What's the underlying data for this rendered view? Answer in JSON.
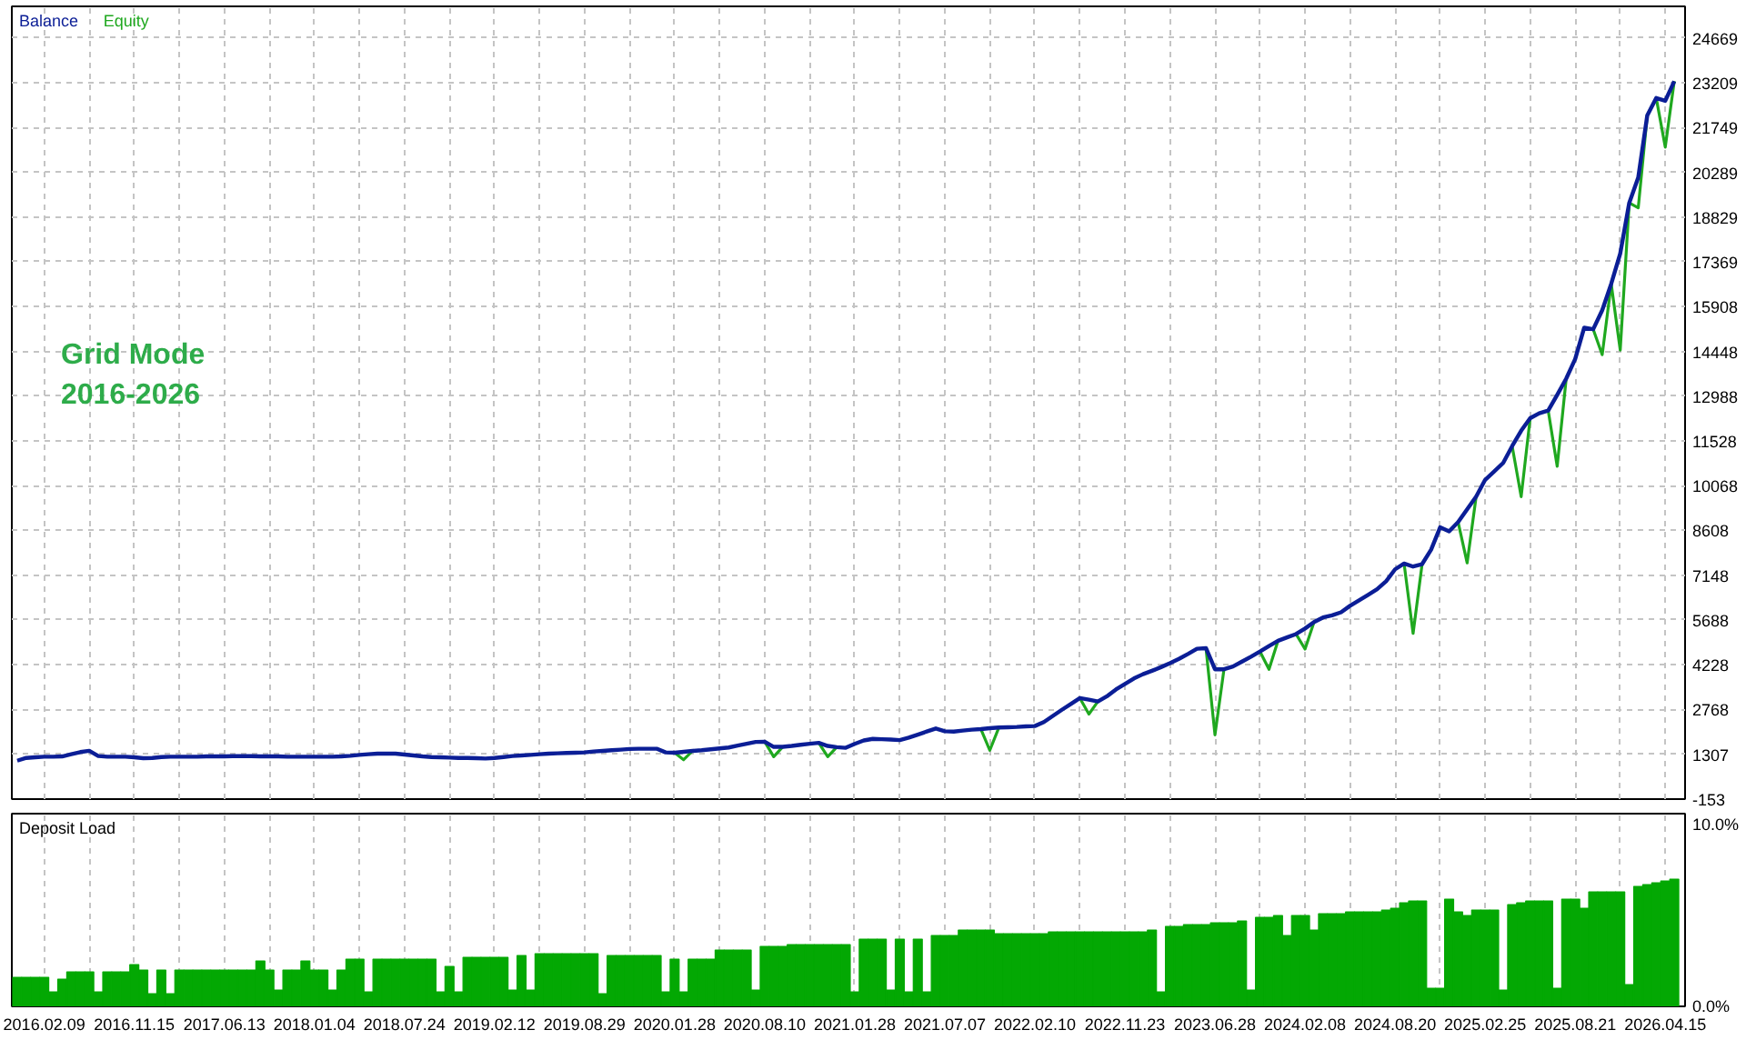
{
  "chart_data": [
    {
      "type": "line",
      "legend": "top left",
      "tick_labels": "y",
      "grid": true,
      "categories": [
        null,
        null,
        null,
        "2016.02.09",
        null,
        null,
        null,
        null,
        null,
        null,
        null,
        null,
        null,
        "2016.11.15",
        null,
        null,
        null,
        null,
        null,
        null,
        null,
        null,
        null,
        "2017.06.13",
        null,
        null,
        null,
        null,
        null,
        null,
        null,
        null,
        null,
        "2018.01.04",
        null,
        null,
        null,
        null,
        null,
        null,
        null,
        null,
        null,
        "2018.07.24",
        null,
        null,
        null,
        null,
        null,
        null,
        null,
        null,
        null,
        "2019.02.12",
        null,
        null,
        null,
        null,
        null,
        null,
        null,
        null,
        null,
        "2019.08.29",
        null,
        null,
        null,
        null,
        null,
        null,
        null,
        null,
        null,
        "2020.01.28",
        null,
        null,
        null,
        null,
        null,
        null,
        null,
        null,
        null,
        "2020.08.10",
        null,
        null,
        null,
        null,
        null,
        null,
        null,
        null,
        null,
        "2021.01.28",
        null,
        null,
        null,
        null,
        null,
        null,
        null,
        null,
        null,
        "2021.07.07",
        null,
        null,
        null,
        null,
        null,
        null,
        null,
        null,
        null,
        "2022.02.10",
        null,
        null,
        null,
        null,
        null,
        null,
        null,
        null,
        null,
        "2022.11.23",
        null,
        null,
        null,
        null,
        null,
        null,
        null,
        null,
        null,
        "2023.06.28",
        null,
        null,
        null,
        null,
        null,
        null,
        null,
        null,
        null,
        "2024.02.08",
        null,
        null,
        null,
        null,
        null,
        null,
        null,
        null,
        null,
        "2024.08.20",
        null,
        null,
        null,
        null,
        null,
        null,
        null,
        null,
        null,
        "2025.02.25",
        null,
        null,
        null,
        null,
        null,
        null,
        null,
        null,
        null,
        "2025.08.21",
        null,
        null,
        null,
        null,
        null,
        null,
        null,
        null,
        null,
        "2026.04.15",
        null
      ],
      "ylim": [
        -153,
        25700
      ],
      "yticks": [
        -153,
        1307,
        2768,
        4228,
        5688,
        7148,
        8608,
        10068,
        11528,
        12988,
        14448,
        15908,
        17369,
        18829,
        20289,
        21749,
        23209,
        24669
      ],
      "annotations": [
        "Grid Mode",
        "2016-2026"
      ],
      "series": [
        {
          "name": "Balance",
          "color": "#0b1e96",
          "values": [
            1100,
            1190,
            1210,
            1230,
            1230,
            1240,
            1310,
            1380,
            1420,
            1250,
            1230,
            1230,
            1230,
            1210,
            1180,
            1190,
            1220,
            1230,
            1230,
            1230,
            1230,
            1240,
            1240,
            1240,
            1250,
            1250,
            1250,
            1240,
            1240,
            1240,
            1230,
            1230,
            1230,
            1230,
            1230,
            1230,
            1240,
            1260,
            1290,
            1310,
            1330,
            1330,
            1330,
            1300,
            1270,
            1240,
            1220,
            1210,
            1200,
            1190,
            1190,
            1180,
            1170,
            1190,
            1220,
            1250,
            1270,
            1290,
            1310,
            1330,
            1340,
            1350,
            1360,
            1370,
            1400,
            1420,
            1440,
            1460,
            1480,
            1490,
            1490,
            1490,
            1370,
            1360,
            1390,
            1420,
            1440,
            1470,
            1500,
            1530,
            1590,
            1650,
            1710,
            1720,
            1550,
            1550,
            1580,
            1620,
            1650,
            1680,
            1580,
            1540,
            1520,
            1650,
            1760,
            1810,
            1800,
            1790,
            1770,
            1850,
            1950,
            2050,
            2150,
            2060,
            2050,
            2080,
            2110,
            2130,
            2160,
            2180,
            2190,
            2200,
            2220,
            2230,
            2360,
            2560,
            2760,
            2950,
            3140,
            3090,
            3030,
            3200,
            3420,
            3600,
            3780,
            3920,
            4030,
            4150,
            4280,
            4420,
            4580,
            4750,
            4770,
            4080,
            4080,
            4170,
            4330,
            4490,
            4660,
            4840,
            5010,
            5120,
            5230,
            5410,
            5620,
            5770,
            5840,
            5940,
            6150,
            6330,
            6510,
            6690,
            6950,
            7340,
            7530,
            7430,
            7510,
            7980,
            8710,
            8580,
            8880,
            9300,
            9710,
            10260,
            10530,
            10810,
            11360,
            11860,
            12270,
            12430,
            12520,
            13030,
            13560,
            14200,
            15220,
            15170,
            15790,
            16650,
            17640,
            19290,
            20120,
            22140,
            22710,
            22620,
            23260
          ]
        },
        {
          "name": "Equity",
          "color": "#1fa81f",
          "values": [
            null,
            null,
            null,
            null,
            null,
            null,
            null,
            null,
            null,
            null,
            null,
            null,
            null,
            null,
            null,
            null,
            null,
            null,
            null,
            null,
            null,
            null,
            null,
            null,
            null,
            null,
            null,
            null,
            null,
            null,
            null,
            null,
            null,
            null,
            null,
            null,
            null,
            null,
            null,
            null,
            null,
            null,
            null,
            null,
            null,
            null,
            null,
            null,
            null,
            null,
            null,
            null,
            null,
            null,
            null,
            null,
            null,
            null,
            null,
            null,
            null,
            null,
            null,
            null,
            null,
            null,
            null,
            null,
            null,
            null,
            null,
            null,
            null,
            1360,
            1130,
            1420,
            null,
            null,
            null,
            null,
            null,
            null,
            null,
            1720,
            1230,
            1550,
            null,
            null,
            null,
            1680,
            1230,
            1540,
            null,
            null,
            null,
            null,
            null,
            null,
            null,
            null,
            null,
            null,
            null,
            null,
            null,
            null,
            null,
            2130,
            1440,
            2180,
            null,
            null,
            null,
            null,
            null,
            null,
            null,
            null,
            3140,
            2620,
            3030,
            null,
            null,
            null,
            null,
            null,
            null,
            null,
            null,
            null,
            null,
            null,
            4770,
            1940,
            4080,
            null,
            null,
            null,
            4660,
            4080,
            5010,
            null,
            5230,
            4740,
            5620,
            null,
            null,
            null,
            null,
            null,
            null,
            null,
            null,
            null,
            7530,
            5250,
            7510,
            null,
            null,
            null,
            8880,
            7550,
            9710,
            null,
            null,
            null,
            11360,
            9710,
            12270,
            null,
            12520,
            10700,
            13560,
            null,
            null,
            15170,
            14340,
            16650,
            14490,
            19290,
            19130,
            22140,
            22710,
            21110,
            23260
          ]
        }
      ]
    },
    {
      "type": "bar",
      "title": "Deposit Load",
      "color": "#03a803",
      "grid": "x",
      "categories": [
        null,
        null,
        null,
        "2016.02.09",
        null,
        null,
        null,
        null,
        null,
        null,
        null,
        null,
        null,
        "2016.11.15",
        null,
        null,
        null,
        null,
        null,
        null,
        null,
        null,
        null,
        "2017.06.13",
        null,
        null,
        null,
        null,
        null,
        null,
        null,
        null,
        null,
        "2018.01.04",
        null,
        null,
        null,
        null,
        null,
        null,
        null,
        null,
        null,
        "2018.07.24",
        null,
        null,
        null,
        null,
        null,
        null,
        null,
        null,
        null,
        "2019.02.12",
        null,
        null,
        null,
        null,
        null,
        null,
        null,
        null,
        null,
        "2019.08.29",
        null,
        null,
        null,
        null,
        null,
        null,
        null,
        null,
        null,
        "2020.01.28",
        null,
        null,
        null,
        null,
        null,
        null,
        null,
        null,
        null,
        "2020.08.10",
        null,
        null,
        null,
        null,
        null,
        null,
        null,
        null,
        null,
        "2021.01.28",
        null,
        null,
        null,
        null,
        null,
        null,
        null,
        null,
        null,
        "2021.07.07",
        null,
        null,
        null,
        null,
        null,
        null,
        null,
        null,
        null,
        "2022.02.10",
        null,
        null,
        null,
        null,
        null,
        null,
        null,
        null,
        null,
        "2022.11.23",
        null,
        null,
        null,
        null,
        null,
        null,
        null,
        null,
        null,
        "2023.06.28",
        null,
        null,
        null,
        null,
        null,
        null,
        null,
        null,
        null,
        "2024.02.08",
        null,
        null,
        null,
        null,
        null,
        null,
        null,
        null,
        null,
        "2024.08.20",
        null,
        null,
        null,
        null,
        null,
        null,
        null,
        null,
        null,
        "2025.02.25",
        null,
        null,
        null,
        null,
        null,
        null,
        null,
        null,
        null,
        "2025.08.21",
        null,
        null,
        null,
        null,
        null,
        null,
        null,
        null,
        null,
        "2026.04.15",
        null
      ],
      "ylim": [
        0,
        10.6
      ],
      "yticks": [
        {
          "value": 0,
          "label": "0.0%"
        },
        {
          "value": 10,
          "label": "10.0%"
        }
      ],
      "values": [
        1.6,
        1.6,
        1.6,
        1.6,
        0.8,
        1.5,
        1.9,
        1.9,
        1.9,
        0.8,
        1.9,
        1.9,
        1.9,
        2.3,
        2.0,
        0.7,
        2.0,
        0.7,
        2.0,
        2.0,
        2.0,
        2.0,
        2.0,
        2.0,
        2.0,
        2.0,
        2.0,
        2.5,
        2.0,
        0.9,
        2.0,
        2.0,
        2.5,
        2.0,
        2.0,
        0.9,
        2.0,
        2.6,
        2.6,
        0.8,
        2.6,
        2.6,
        2.6,
        2.6,
        2.6,
        2.6,
        2.6,
        0.8,
        2.2,
        0.8,
        2.7,
        2.7,
        2.7,
        2.7,
        2.7,
        0.9,
        2.8,
        0.9,
        2.9,
        2.9,
        2.9,
        2.9,
        2.9,
        2.9,
        2.9,
        0.7,
        2.8,
        2.8,
        2.8,
        2.8,
        2.8,
        2.8,
        0.8,
        2.6,
        0.8,
        2.6,
        2.6,
        2.6,
        3.1,
        3.1,
        3.1,
        3.1,
        0.9,
        3.3,
        3.3,
        3.3,
        3.4,
        3.4,
        3.4,
        3.4,
        3.4,
        3.4,
        3.4,
        0.8,
        3.7,
        3.7,
        3.7,
        0.9,
        3.7,
        0.8,
        3.7,
        0.8,
        3.9,
        3.9,
        3.9,
        4.2,
        4.2,
        4.2,
        4.2,
        4.0,
        4.0,
        4.0,
        4.0,
        4.0,
        4.0,
        4.1,
        4.1,
        4.1,
        4.1,
        4.1,
        4.1,
        4.1,
        4.1,
        4.1,
        4.1,
        4.1,
        4.2,
        0.8,
        4.4,
        4.4,
        4.5,
        4.5,
        4.5,
        4.6,
        4.6,
        4.6,
        4.7,
        0.9,
        4.9,
        4.9,
        5.0,
        3.9,
        5.0,
        5.0,
        4.2,
        5.1,
        5.1,
        5.1,
        5.2,
        5.2,
        5.2,
        5.2,
        5.3,
        5.4,
        5.7,
        5.8,
        5.8,
        1.0,
        1.0,
        5.9,
        5.2,
        5.0,
        5.3,
        5.3,
        5.3,
        0.9,
        5.6,
        5.7,
        5.8,
        5.8,
        5.8,
        1.0,
        5.9,
        5.9,
        5.4,
        6.3,
        6.3,
        6.3,
        6.3,
        1.2,
        6.6,
        6.7,
        6.8,
        6.9,
        7.0
      ]
    }
  ]
}
